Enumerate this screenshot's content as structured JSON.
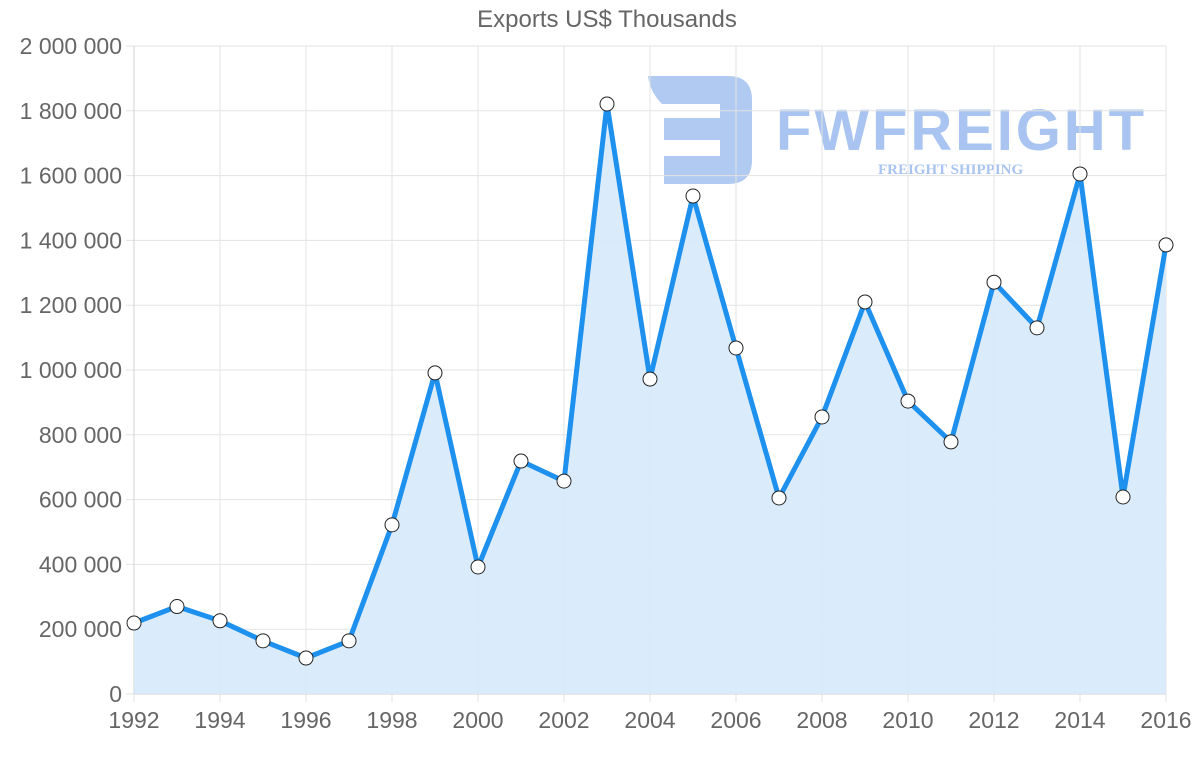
{
  "chart_data": {
    "type": "line",
    "title": "Exports US$ Thousands",
    "xlabel": "",
    "ylabel": "",
    "x": [
      1992,
      1993,
      1994,
      1995,
      1996,
      1997,
      1998,
      1999,
      2000,
      2001,
      2002,
      2003,
      2004,
      2005,
      2006,
      2007,
      2008,
      2009,
      2010,
      2011,
      2012,
      2013,
      2014,
      2015,
      2016
    ],
    "series": [
      {
        "name": "Exports US$ Thousands",
        "values": [
          219000,
          270000,
          226000,
          164000,
          111000,
          164000,
          522000,
          991000,
          392000,
          719000,
          657000,
          1821000,
          972000,
          1537000,
          1068000,
          605000,
          855000,
          1210000,
          904000,
          778000,
          1271000,
          1130000,
          1605000,
          608000,
          1386000
        ],
        "line_color": "#1e90ee",
        "fill_color": "#d6eafc",
        "marker": "circle-white"
      }
    ],
    "ylim": [
      0,
      2000000
    ],
    "y_ticks": [
      0,
      200000,
      400000,
      600000,
      800000,
      1000000,
      1200000,
      1400000,
      1600000,
      1800000,
      2000000
    ],
    "y_tick_labels": [
      "0",
      "200 000",
      "400 000",
      "600 000",
      "800 000",
      "1 000 000",
      "1 200 000",
      "1 400 000",
      "1 600 000",
      "1 800 000",
      "2 000 000"
    ],
    "x_tick_labels": [
      "1992",
      "1994",
      "1996",
      "1998",
      "2000",
      "2002",
      "2004",
      "2006",
      "2008",
      "2010",
      "2012",
      "2014",
      "2016"
    ],
    "grid": true,
    "legend": "none",
    "fill": true
  },
  "watermark": {
    "brand": "FWFREIGHT",
    "tagline": "FREIGHT SHIPPING",
    "color": "#a9c4f0"
  },
  "colors": {
    "text": "#666666",
    "grid": "#e3e3e3",
    "line": "#1e90ee",
    "fill": "#d6eafc"
  }
}
